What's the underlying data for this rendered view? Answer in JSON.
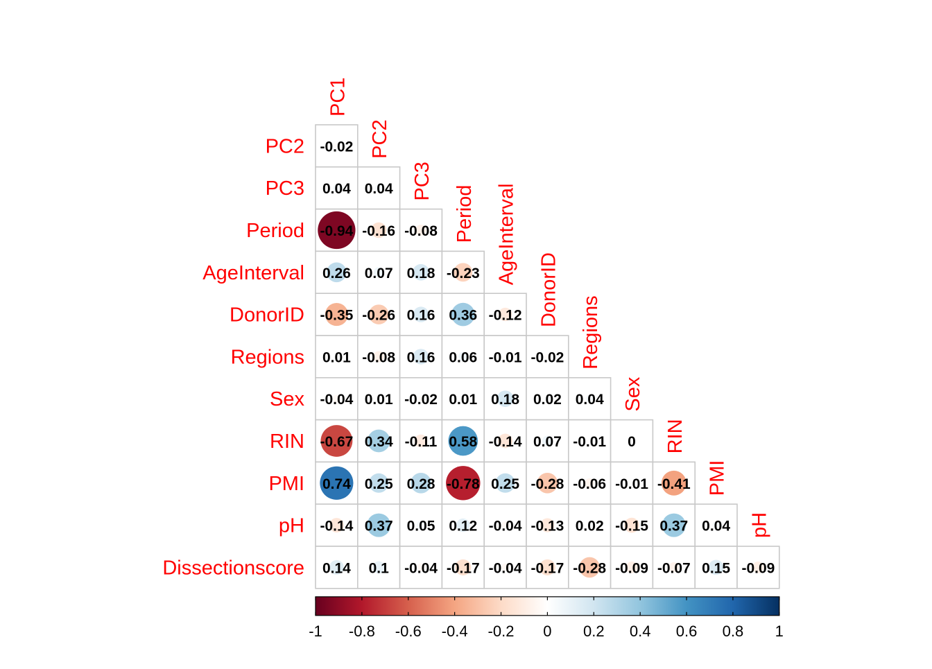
{
  "chart_data": {
    "type": "heatmap",
    "title": "",
    "xlabel": "",
    "ylabel": "",
    "variables": [
      "PC1",
      "PC2",
      "PC3",
      "Period",
      "AgeInterval",
      "DonorID",
      "Regions",
      "Sex",
      "RIN",
      "PMI",
      "pH",
      "Dissectionscore"
    ],
    "row_labels": [
      "PC2",
      "PC3",
      "Period",
      "AgeInterval",
      "DonorID",
      "Regions",
      "Sex",
      "RIN",
      "PMI",
      "pH",
      "Dissectionscore"
    ],
    "col_labels": [
      "PC1",
      "PC2",
      "PC3",
      "Period",
      "AgeInterval",
      "DonorID",
      "Regions",
      "Sex",
      "RIN",
      "PMI",
      "pH"
    ],
    "values": [
      [
        -0.02
      ],
      [
        0.04,
        0.04
      ],
      [
        -0.94,
        -0.16,
        -0.08
      ],
      [
        0.26,
        0.07,
        0.18,
        -0.23
      ],
      [
        -0.35,
        -0.26,
        0.16,
        0.36,
        -0.12
      ],
      [
        0.01,
        -0.08,
        0.16,
        0.06,
        -0.01,
        -0.02
      ],
      [
        -0.04,
        0.01,
        -0.02,
        0.01,
        0.18,
        0.02,
        0.04
      ],
      [
        -0.67,
        0.34,
        -0.11,
        0.58,
        -0.14,
        0.07,
        -0.01,
        0
      ],
      [
        0.74,
        0.25,
        0.28,
        -0.78,
        0.25,
        -0.28,
        -0.06,
        -0.01,
        -0.41
      ],
      [
        -0.14,
        0.37,
        0.05,
        0.12,
        -0.04,
        -0.13,
        0.02,
        -0.15,
        0.37,
        0.04
      ],
      [
        0.14,
        0.1,
        -0.04,
        -0.17,
        -0.04,
        -0.17,
        -0.28,
        -0.09,
        -0.07,
        0.15,
        -0.09
      ]
    ],
    "value_labels": [
      [
        "-0.02"
      ],
      [
        "0.04",
        "0.04"
      ],
      [
        "-0.94",
        "-0.16",
        "-0.08"
      ],
      [
        "0.26",
        "0.07",
        "0.18",
        "-0.23"
      ],
      [
        "-0.35",
        "-0.26",
        "0.16",
        "0.36",
        "-0.12"
      ],
      [
        "0.01",
        "-0.08",
        "0.16",
        "0.06",
        "-0.01",
        "-0.02"
      ],
      [
        "-0.04",
        "0.01",
        "-0.02",
        "0.01",
        "0.18",
        "0.02",
        "0.04"
      ],
      [
        "-0.67",
        "0.34",
        "-0.11",
        "0.58",
        "-0.14",
        "0.07",
        "-0.01",
        "0"
      ],
      [
        "0.74",
        "0.25",
        "0.28",
        "-0.78",
        "0.25",
        "-0.28",
        "-0.06",
        "-0.01",
        "-0.41"
      ],
      [
        "-0.14",
        "0.37",
        "0.05",
        "0.12",
        "-0.04",
        "-0.13",
        "0.02",
        "-0.15",
        "0.37",
        "0.04"
      ],
      [
        "0.14",
        "0.1",
        "-0.04",
        "-0.17",
        "-0.04",
        "-0.17",
        "-0.28",
        "-0.09",
        "-0.07",
        "0.15",
        "-0.09"
      ]
    ],
    "layout": "lower-triangle",
    "glyph": "circle",
    "color_range": [
      -1,
      1
    ],
    "colorbar": {
      "placement": "bottom",
      "ticks": [
        -1,
        -0.8,
        -0.6,
        -0.4,
        -0.2,
        0,
        0.2,
        0.4,
        0.6,
        0.8,
        1
      ],
      "tick_labels": [
        "-1",
        "-0.8",
        "-0.6",
        "-0.4",
        "-0.2",
        "0",
        "0.2",
        "0.4",
        "0.6",
        "0.8",
        "1"
      ]
    },
    "colors": {
      "label": "#ff0000",
      "grid": "#c8c8c8",
      "palette": [
        "#67001f",
        "#b2182b",
        "#d6604d",
        "#f4a582",
        "#fddbc7",
        "#ffffff",
        "#d1e5f0",
        "#92c5de",
        "#4393c3",
        "#2166ac",
        "#053061"
      ]
    }
  }
}
